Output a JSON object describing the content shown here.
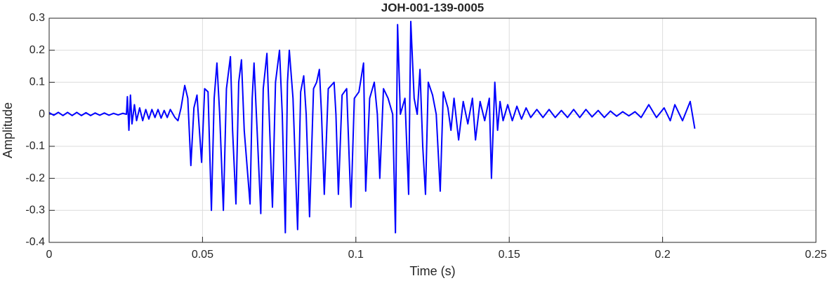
{
  "chart_data": {
    "type": "line",
    "title": "JOH-001-139-0005",
    "xlabel": "Time (s)",
    "ylabel": "Amplitude",
    "xlim": [
      0,
      0.25
    ],
    "xticks": [
      0,
      0.05,
      0.1,
      0.15,
      0.2,
      0.25
    ],
    "ylim": [
      -0.4,
      0.3
    ],
    "yticks": [
      -0.4,
      -0.3,
      -0.2,
      -0.1,
      0,
      0.1,
      0.2,
      0.3
    ],
    "grid": true,
    "x": [
      0,
      0.0015,
      0.003,
      0.0045,
      0.006,
      0.0075,
      0.009,
      0.0105,
      0.012,
      0.0135,
      0.015,
      0.0165,
      0.018,
      0.0195,
      0.021,
      0.0225,
      0.024,
      0.0252,
      0.0255,
      0.026,
      0.0265,
      0.027,
      0.0278,
      0.0285,
      0.0295,
      0.0305,
      0.0315,
      0.0325,
      0.0335,
      0.0345,
      0.0355,
      0.0365,
      0.0375,
      0.0385,
      0.0395,
      0.041,
      0.042,
      0.043,
      0.0442,
      0.0452,
      0.0462,
      0.0472,
      0.0482,
      0.0497,
      0.0507,
      0.0518,
      0.0529,
      0.0538,
      0.0547,
      0.0556,
      0.0568,
      0.0578,
      0.0591,
      0.0598,
      0.0609,
      0.0618,
      0.0627,
      0.0636,
      0.0655,
      0.0662,
      0.0668,
      0.0678,
      0.069,
      0.0698,
      0.071,
      0.0718,
      0.0728,
      0.0738,
      0.0751,
      0.076,
      0.077,
      0.0777,
      0.0783,
      0.0795,
      0.081,
      0.082,
      0.083,
      0.0838,
      0.0849,
      0.0862,
      0.0872,
      0.0881,
      0.0888,
      0.0897,
      0.091,
      0.0929,
      0.0935,
      0.0943,
      0.0955,
      0.097,
      0.0984,
      0.0995,
      0.101,
      0.1025,
      0.1032,
      0.1045,
      0.106,
      0.107,
      0.1078,
      0.109,
      0.1105,
      0.112,
      0.1129,
      0.1136,
      0.1145,
      0.116,
      0.1172,
      0.1179,
      0.119,
      0.12,
      0.1209,
      0.1218,
      0.1227,
      0.1236,
      0.125,
      0.1262,
      0.1275,
      0.1285,
      0.13,
      0.131,
      0.132,
      0.1335,
      0.135,
      0.1365,
      0.138,
      0.139,
      0.1405,
      0.142,
      0.1435,
      0.1442,
      0.1453,
      0.1462,
      0.147,
      0.148,
      0.1495,
      0.151,
      0.1525,
      0.154,
      0.1555,
      0.157,
      0.159,
      0.161,
      0.163,
      0.165,
      0.167,
      0.169,
      0.171,
      0.173,
      0.175,
      0.177,
      0.179,
      0.181,
      0.183,
      0.185,
      0.187,
      0.189,
      0.191,
      0.193,
      0.1955,
      0.198,
      0.2005,
      0.2025,
      0.204,
      0.2065,
      0.209,
      0.2105
    ],
    "series": [
      {
        "name": "Amplitude",
        "color": "#0000ff",
        "values": [
          0.005,
          -0.003,
          0.006,
          -0.004,
          0.006,
          -0.004,
          0.006,
          -0.004,
          0.005,
          -0.004,
          0.004,
          -0.003,
          0.004,
          -0.003,
          0.003,
          -0.002,
          0.003,
          0,
          0.055,
          -0.05,
          0.06,
          -0.03,
          0.03,
          -0.02,
          0.02,
          -0.02,
          0.015,
          -0.015,
          0.015,
          -0.01,
          0.015,
          -0.012,
          0.012,
          -0.01,
          0.015,
          -0.01,
          -0.02,
          0.02,
          0.09,
          0.05,
          -0.16,
          0.02,
          0.06,
          -0.15,
          0.08,
          0.07,
          -0.3,
          0.05,
          0.16,
          0,
          -0.3,
          0.08,
          0.18,
          -0.05,
          -0.28,
          0.1,
          0.17,
          -0.05,
          -0.28,
          0.05,
          0.16,
          -0.05,
          -0.31,
          0.08,
          0.19,
          -0.02,
          -0.29,
          0.1,
          0.2,
          0,
          -0.37,
          0.1,
          0.2,
          0.05,
          -0.36,
          0.07,
          0.12,
          0,
          -0.32,
          0.08,
          0.1,
          0.14,
          0,
          -0.25,
          0.08,
          0.1,
          0,
          -0.25,
          0.06,
          0.08,
          -0.29,
          0.05,
          0.07,
          0.16,
          -0.24,
          0.05,
          0.1,
          0,
          -0.2,
          0.08,
          0.05,
          0,
          -0.37,
          0.28,
          0,
          0.05,
          -0.25,
          0.29,
          0.05,
          0,
          0.14,
          -0.1,
          -0.25,
          0.1,
          0.06,
          0,
          -0.24,
          0.07,
          0.02,
          -0.05,
          0.05,
          -0.08,
          0.04,
          -0.03,
          0.05,
          -0.08,
          0.04,
          -0.02,
          0.05,
          -0.2,
          0.1,
          -0.05,
          0.04,
          -0.02,
          0.03,
          -0.02,
          0.025,
          -0.015,
          0.02,
          -0.01,
          0.015,
          -0.01,
          0.015,
          -0.01,
          0.012,
          -0.01,
          0.015,
          -0.01,
          0.015,
          -0.008,
          0.012,
          -0.01,
          0.01,
          -0.006,
          0.008,
          -0.005,
          0.008,
          -0.01,
          0.03,
          -0.01,
          0.02,
          -0.02,
          0.03,
          -0.02,
          0.04,
          -0.045
        ]
      }
    ]
  }
}
